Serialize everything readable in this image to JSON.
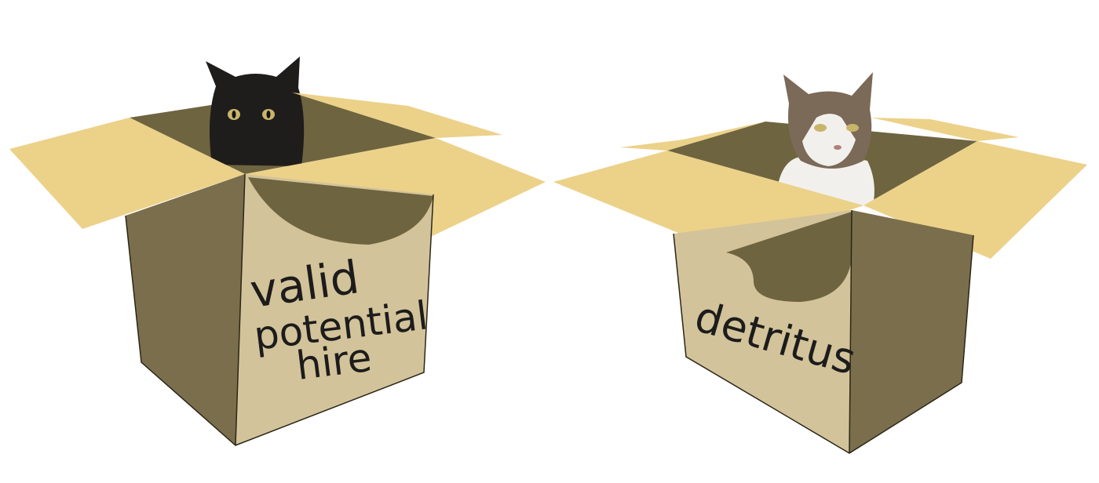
{
  "boxes": [
    {
      "cat": "black cat",
      "label_lines": [
        "valid",
        "potential",
        "hire"
      ]
    },
    {
      "cat": "tabby and white cat",
      "label_lines": [
        "detritus"
      ]
    }
  ],
  "colors": {
    "background": "#ffffff",
    "box_side_light": "#d3c39a",
    "box_side_dark": "#7a6e4c",
    "flap": "#ecd189",
    "box_interior": "#6e643f",
    "outline": "#2a2618",
    "ink": "#1c1c1c",
    "black_cat": "#1f1d1b",
    "tabby_brown": "#7b6a58",
    "white_fur": "#f2f0ec",
    "eye_yellow": "#c9b56a"
  }
}
